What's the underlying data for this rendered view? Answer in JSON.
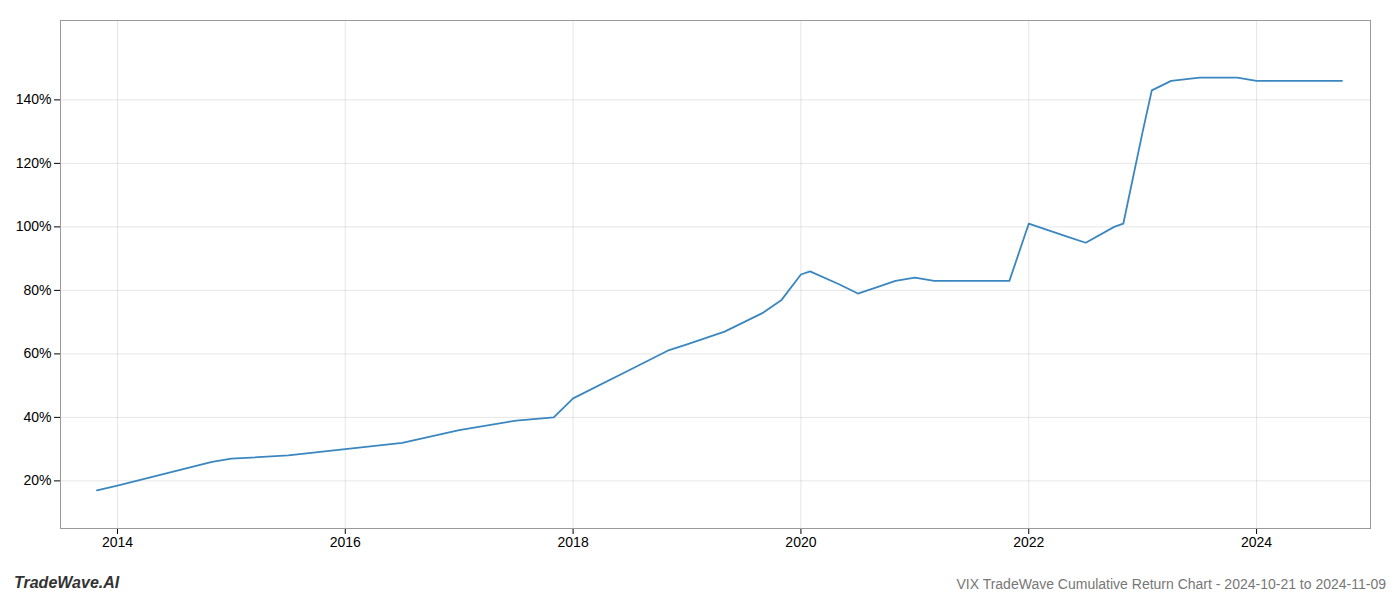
{
  "chart_data": {
    "type": "line",
    "title": "VIX TradeWave Cumulative Return Chart - 2024-10-21 to 2024-11-09",
    "annotations": [
      "TradeWave.AI"
    ],
    "x": [
      2013.82,
      2014.0,
      2014.83,
      2015.0,
      2015.5,
      2016.0,
      2016.5,
      2017.0,
      2017.5,
      2017.83,
      2018.0,
      2018.5,
      2018.83,
      2019.0,
      2019.33,
      2019.67,
      2019.83,
      2020.0,
      2020.08,
      2020.33,
      2020.5,
      2020.67,
      2020.83,
      2021.0,
      2021.17,
      2021.83,
      2022.0,
      2022.33,
      2022.5,
      2022.75,
      2022.83,
      2023.0,
      2023.08,
      2023.25,
      2023.5,
      2023.75,
      2023.83,
      2024.0,
      2024.5,
      2024.75
    ],
    "values": [
      17,
      18.5,
      26,
      27,
      28,
      30,
      32,
      36,
      39,
      40,
      46,
      55,
      61,
      63,
      67,
      73,
      77,
      85,
      86,
      82,
      79,
      81,
      83,
      84,
      83,
      83,
      101,
      97,
      95,
      100,
      101,
      130,
      143,
      146,
      147,
      147,
      147,
      146,
      146,
      146
    ],
    "color": "#3a87c0",
    "xlim": [
      2013.5,
      2025.0
    ],
    "ylim": [
      5,
      165
    ],
    "xticks": [
      2014,
      2016,
      2018,
      2020,
      2022,
      2024
    ],
    "yticks": [
      {
        "value": 20,
        "label": "20%"
      },
      {
        "value": 40,
        "label": "40%"
      },
      {
        "value": 60,
        "label": "60%"
      },
      {
        "value": 80,
        "label": "80%"
      },
      {
        "value": 100,
        "label": "100%"
      },
      {
        "value": 120,
        "label": "120%"
      },
      {
        "value": 140,
        "label": "140%"
      }
    ],
    "grid": true
  }
}
